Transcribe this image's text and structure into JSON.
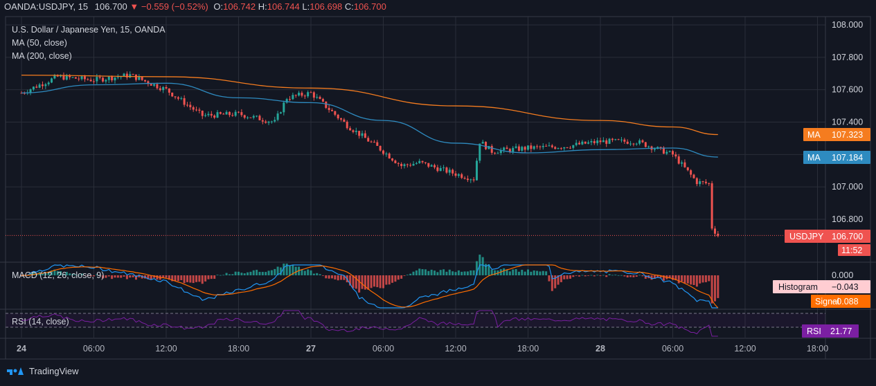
{
  "header": {
    "symbol": "OANDA:USDJPY, 15",
    "price": "106.700",
    "change": "−0.559 (−0.52%)",
    "o_label": "O:",
    "o_value": "106.742",
    "h_label": "H:",
    "h_value": "106.744",
    "l_label": "L:",
    "l_value": "106.698",
    "c_label": "C:",
    "c_value": "106.700"
  },
  "legend": {
    "instrument": "U.S. Dollar / Japanese Yen, 15, OANDA",
    "ma50": "MA (50, close)",
    "ma200": "MA (200, close)",
    "macd": "MACD (12, 26, close, 9)",
    "rsi": "RSI (14, close)"
  },
  "badges": {
    "ma200_label": "MA",
    "ma200_value": "107.323",
    "ma50_label": "MA",
    "ma50_value": "107.184",
    "price_label": "USDJPY",
    "price_value": "106.700",
    "countdown": "11:52",
    "histogram_label": "Histogram",
    "histogram_value": "−0.043",
    "signal_label": "Signal",
    "signal_value": "−0.088",
    "rsi_label": "RSI",
    "rsi_value": "21.77",
    "macd_zero": "0.000"
  },
  "brand": "TradingView",
  "colors": {
    "background": "#131722",
    "grid": "#2a2e39",
    "up": "#26a69a",
    "down": "#ef5350",
    "ma50": "#2e8bc0",
    "ma200": "#f57c1f",
    "macd": "#2196f3",
    "signal": "#ff6d00",
    "rsi": "#7b1fa2",
    "hist_up": "#26a69a",
    "hist_down": "#ef5350"
  },
  "chart_data": {
    "type": "candlestick",
    "title": "U.S. Dollar / Japanese Yen, 15, OANDA",
    "y_ticks": [
      "108.000",
      "107.800",
      "107.600",
      "107.400",
      "107.200",
      "107.000",
      "106.800"
    ],
    "ylim": [
      106.6,
      108.05
    ],
    "x_ticks": [
      "24",
      "06:00",
      "12:00",
      "18:00",
      "27",
      "06:00",
      "12:00",
      "18:00",
      "28",
      "06:00",
      "12:00",
      "18:00"
    ],
    "close_series": [
      {
        "x": "24 00:00",
        "y": 107.58
      },
      {
        "x": "24 03:00",
        "y": 107.68
      },
      {
        "x": "24 06:00",
        "y": 107.66
      },
      {
        "x": "24 09:00",
        "y": 107.69
      },
      {
        "x": "24 12:00",
        "y": 107.6
      },
      {
        "x": "24 15:00",
        "y": 107.44
      },
      {
        "x": "24 18:00",
        "y": 107.45
      },
      {
        "x": "24 21:00",
        "y": 107.4
      },
      {
        "x": "24 22:00",
        "y": 107.55
      },
      {
        "x": "27 00:00",
        "y": 107.58
      },
      {
        "x": "27 03:00",
        "y": 107.38
      },
      {
        "x": "27 06:00",
        "y": 107.22
      },
      {
        "x": "27 07:30",
        "y": 107.13
      },
      {
        "x": "27 09:00",
        "y": 107.15
      },
      {
        "x": "27 12:00",
        "y": 107.08
      },
      {
        "x": "27 13:30",
        "y": 107.05
      },
      {
        "x": "27 14:00",
        "y": 107.28
      },
      {
        "x": "27 15:00",
        "y": 107.22
      },
      {
        "x": "27 18:00",
        "y": 107.24
      },
      {
        "x": "27 21:00",
        "y": 107.25
      },
      {
        "x": "28 00:00",
        "y": 107.28
      },
      {
        "x": "28 03:00",
        "y": 107.28
      },
      {
        "x": "28 06:00",
        "y": 107.2
      },
      {
        "x": "28 08:00",
        "y": 107.03
      },
      {
        "x": "28 09:00",
        "y": 107.02
      },
      {
        "x": "28 09:15",
        "y": 106.75
      },
      {
        "x": "28 09:45",
        "y": 106.7
      }
    ],
    "series": [
      {
        "name": "MA (50, close)",
        "points": [
          {
            "x": "24 00:00",
            "y": 107.58
          },
          {
            "x": "24 06:00",
            "y": 107.63
          },
          {
            "x": "24 12:00",
            "y": 107.64
          },
          {
            "x": "24 18:00",
            "y": 107.55
          },
          {
            "x": "27 00:00",
            "y": 107.52
          },
          {
            "x": "27 06:00",
            "y": 107.41
          },
          {
            "x": "27 12:00",
            "y": 107.27
          },
          {
            "x": "27 18:00",
            "y": 107.21
          },
          {
            "x": "28 00:00",
            "y": 107.23
          },
          {
            "x": "28 06:00",
            "y": 107.24
          },
          {
            "x": "28 09:45",
            "y": 107.184
          }
        ]
      },
      {
        "name": "MA (200, close)",
        "points": [
          {
            "x": "24 00:00",
            "y": 107.69
          },
          {
            "x": "24 12:00",
            "y": 107.68
          },
          {
            "x": "27 00:00",
            "y": 107.61
          },
          {
            "x": "27 12:00",
            "y": 107.5
          },
          {
            "x": "28 00:00",
            "y": 107.41
          },
          {
            "x": "28 06:00",
            "y": 107.37
          },
          {
            "x": "28 09:45",
            "y": 107.323
          }
        ]
      }
    ],
    "macd": {
      "histogram": -0.043,
      "signal": -0.088
    },
    "rsi": {
      "value": 21.77
    }
  }
}
